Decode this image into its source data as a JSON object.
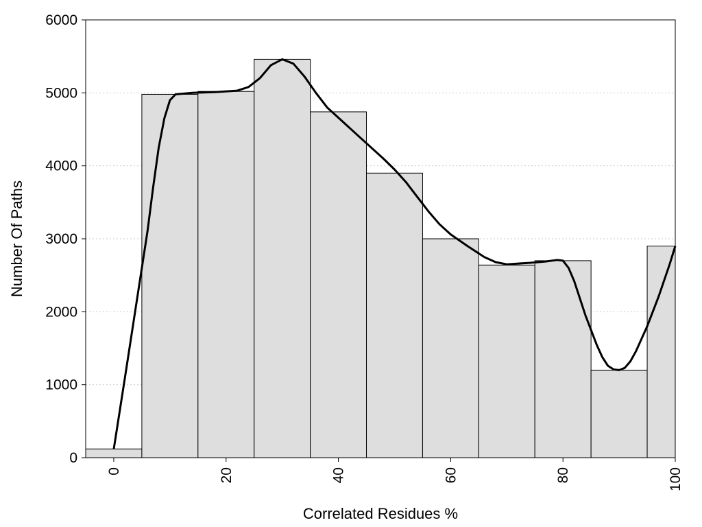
{
  "chart_data": {
    "type": "bar",
    "title": "",
    "xlabel": "Correlated Residues %",
    "ylabel": "Number Of Paths",
    "xlim": [
      -5,
      100
    ],
    "ylim": [
      0,
      6000
    ],
    "bin_width": 10,
    "bins": [
      {
        "center": 0,
        "value": 120
      },
      {
        "center": 10,
        "value": 4980
      },
      {
        "center": 20,
        "value": 5020
      },
      {
        "center": 30,
        "value": 5460
      },
      {
        "center": 40,
        "value": 4740
      },
      {
        "center": 50,
        "value": 3900
      },
      {
        "center": 60,
        "value": 3000
      },
      {
        "center": 70,
        "value": 2640
      },
      {
        "center": 80,
        "value": 2700
      },
      {
        "center": 90,
        "value": 1200
      },
      {
        "center": 100,
        "value": 2900
      }
    ],
    "smooth_line": [
      [
        0,
        120
      ],
      [
        2,
        1100
      ],
      [
        4,
        2100
      ],
      [
        6,
        3100
      ],
      [
        7,
        3700
      ],
      [
        8,
        4250
      ],
      [
        9,
        4650
      ],
      [
        10,
        4900
      ],
      [
        11,
        4980
      ],
      [
        14,
        5000
      ],
      [
        18,
        5010
      ],
      [
        22,
        5030
      ],
      [
        24,
        5080
      ],
      [
        26,
        5200
      ],
      [
        28,
        5380
      ],
      [
        30,
        5460
      ],
      [
        32,
        5400
      ],
      [
        34,
        5220
      ],
      [
        36,
        5000
      ],
      [
        38,
        4800
      ],
      [
        40,
        4660
      ],
      [
        44,
        4380
      ],
      [
        48,
        4100
      ],
      [
        50,
        3950
      ],
      [
        52,
        3780
      ],
      [
        54,
        3580
      ],
      [
        56,
        3380
      ],
      [
        58,
        3200
      ],
      [
        60,
        3060
      ],
      [
        63,
        2900
      ],
      [
        66,
        2750
      ],
      [
        68,
        2680
      ],
      [
        70,
        2650
      ],
      [
        74,
        2670
      ],
      [
        77,
        2690
      ],
      [
        79,
        2710
      ],
      [
        80,
        2700
      ],
      [
        81,
        2600
      ],
      [
        82,
        2420
      ],
      [
        84,
        1950
      ],
      [
        86,
        1550
      ],
      [
        87,
        1380
      ],
      [
        88,
        1260
      ],
      [
        89,
        1210
      ],
      [
        90,
        1200
      ],
      [
        91,
        1230
      ],
      [
        92,
        1320
      ],
      [
        93,
        1460
      ],
      [
        95,
        1800
      ],
      [
        97,
        2200
      ],
      [
        99,
        2650
      ],
      [
        100,
        2900
      ]
    ],
    "x_ticks": [
      0,
      20,
      40,
      60,
      80,
      100
    ],
    "y_ticks": [
      0,
      1000,
      2000,
      3000,
      4000,
      5000,
      6000
    ],
    "grid": "horizontal dotted",
    "colors": {
      "bar_fill": "#dedede",
      "bar_stroke": "#000000",
      "line": "#000000",
      "grid": "#cccccc"
    }
  }
}
